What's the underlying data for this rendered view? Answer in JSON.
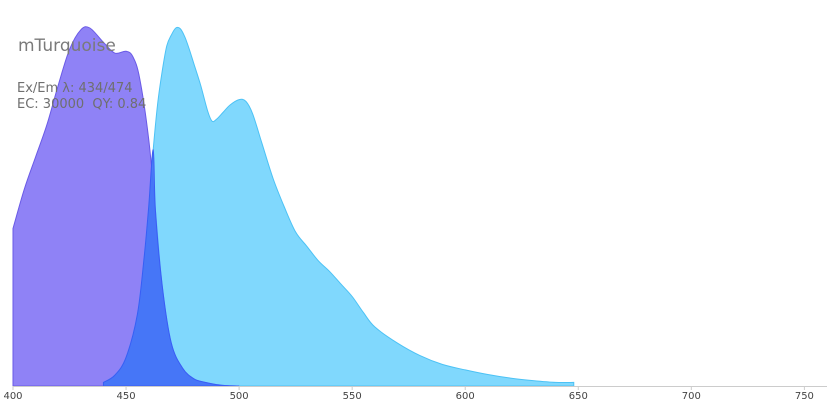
{
  "chart_data": {
    "type": "area",
    "title": "mTurquoise",
    "info_line1": "Ex/Em λ: 434/474",
    "info_line2": "EC: 30000  QY: 0.84",
    "xlim": [
      400,
      760
    ],
    "ylim": [
      0,
      1
    ],
    "x_ticks": [
      400,
      450,
      500,
      550,
      600,
      650,
      700,
      750
    ],
    "x_tick_labels": [
      "400",
      "450",
      "500",
      "550",
      "600",
      "650",
      "700",
      "750"
    ],
    "grid": false,
    "legend": "none",
    "series": [
      {
        "kind": "excitation",
        "color": "#7b6cf4",
        "stroke": "#6a5ae6",
        "x": [
          400,
          405,
          410,
          415,
          420,
          425,
          430,
          434,
          440,
          445,
          450,
          453,
          456,
          460,
          463,
          466,
          470,
          475,
          480,
          485,
          490,
          495,
          500
        ],
        "y": [
          0.44,
          0.55,
          0.64,
          0.73,
          0.84,
          0.94,
          0.995,
          1.0,
          0.96,
          0.93,
          0.935,
          0.92,
          0.86,
          0.69,
          0.49,
          0.28,
          0.12,
          0.05,
          0.02,
          0.01,
          0.004,
          0.001,
          0.0
        ]
      },
      {
        "kind": "emission",
        "color": "#5ccdfd",
        "stroke": "#4cc2f5",
        "x": [
          440,
          445,
          450,
          455,
          458,
          460,
          462,
          464,
          466,
          468,
          470,
          472,
          474,
          476,
          478,
          480,
          483,
          486,
          488,
          490,
          493,
          496,
          500,
          503,
          506,
          510,
          515,
          520,
          525,
          530,
          535,
          540,
          545,
          550,
          555,
          560,
          570,
          580,
          590,
          600,
          610,
          620,
          630,
          640,
          648
        ],
        "y": [
          0.01,
          0.03,
          0.08,
          0.2,
          0.36,
          0.5,
          0.66,
          0.79,
          0.88,
          0.95,
          0.98,
          1.0,
          0.998,
          0.975,
          0.94,
          0.9,
          0.84,
          0.77,
          0.74,
          0.745,
          0.765,
          0.785,
          0.8,
          0.795,
          0.76,
          0.68,
          0.58,
          0.5,
          0.43,
          0.39,
          0.35,
          0.32,
          0.285,
          0.25,
          0.205,
          0.165,
          0.12,
          0.085,
          0.06,
          0.045,
          0.032,
          0.022,
          0.015,
          0.01,
          0.01
        ]
      },
      {
        "kind": "overlap",
        "color": "#3a5cf5",
        "stroke": "#3a5cf5",
        "x": [
          440,
          445,
          450,
          455,
          458,
          460,
          462,
          463,
          466,
          470,
          475,
          480,
          485,
          490,
          495,
          500
        ],
        "y": [
          0.01,
          0.03,
          0.08,
          0.2,
          0.36,
          0.5,
          0.66,
          0.49,
          0.28,
          0.12,
          0.05,
          0.02,
          0.01,
          0.004,
          0.001,
          0.0
        ]
      }
    ]
  }
}
